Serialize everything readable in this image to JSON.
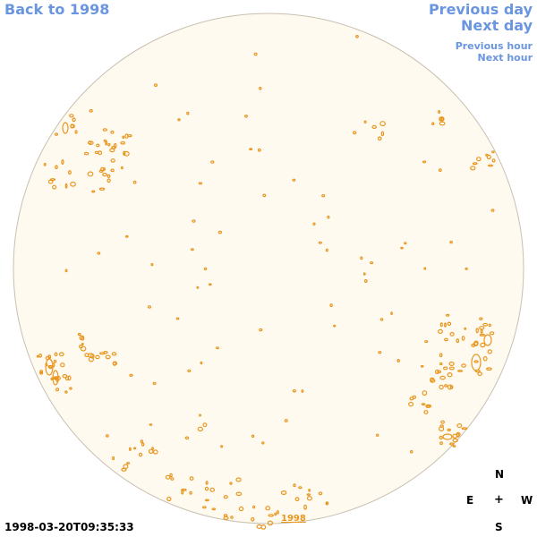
{
  "nav": {
    "back_label": "Back to 1998",
    "prev_day_label": "Previous day",
    "next_day_label": "Next day",
    "prev_hour_label": "Previous hour",
    "next_hour_label": "Next hour"
  },
  "compass": {
    "north": "N",
    "east": "E",
    "center": "+",
    "west": "W",
    "south": "S"
  },
  "timestamp": "1998-03-20T09:35:33",
  "disk_year_label": "1998",
  "colors": {
    "link": "#6a96e0",
    "disk_fill": "#fffaf0",
    "disk_outline": "#c8c0b0",
    "contour": "#e8961e"
  }
}
